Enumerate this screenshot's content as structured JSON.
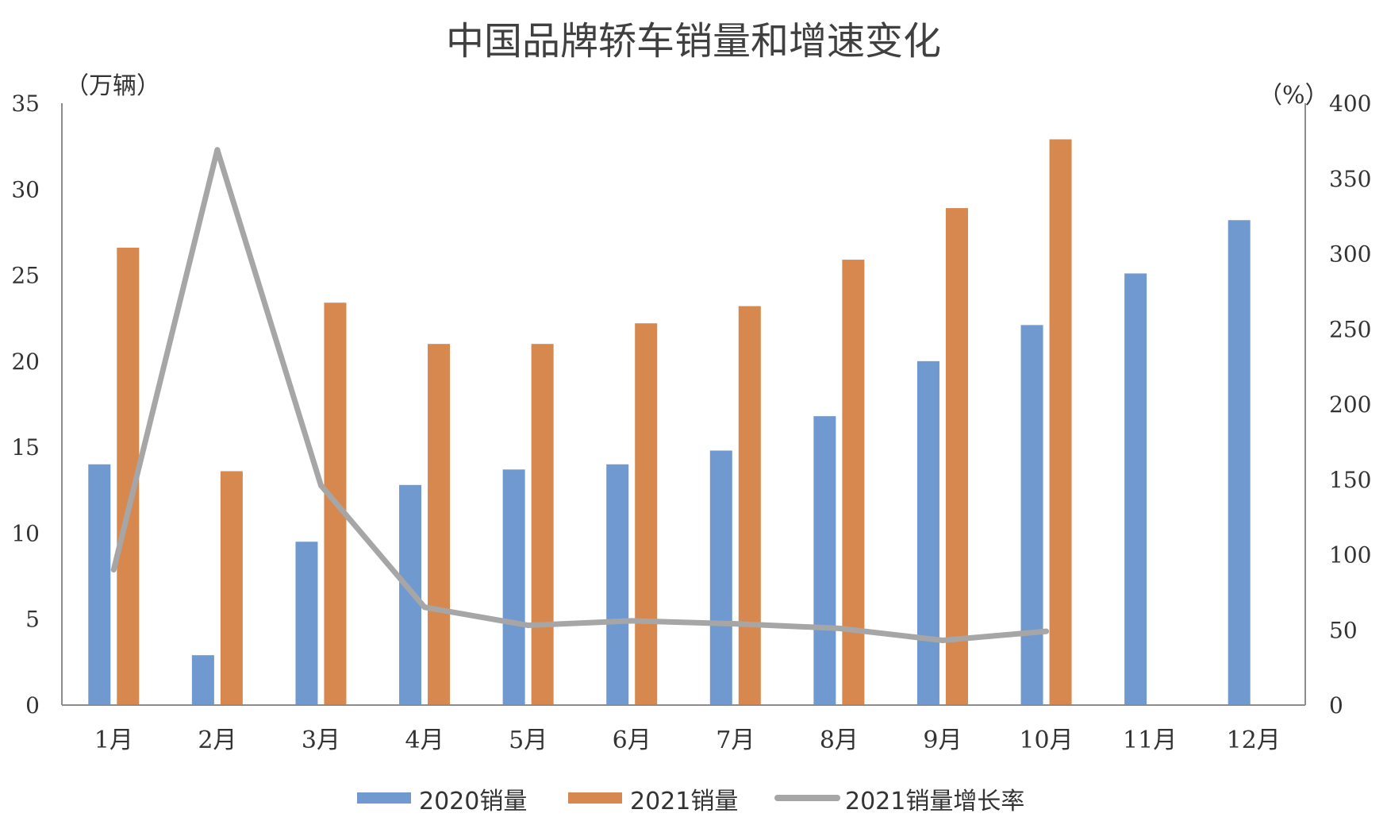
{
  "chart_data": {
    "type": "bar",
    "title": "中国品牌轿车销量和增速变化",
    "ylabel": "（万辆）",
    "y2label": "（%）",
    "categories": [
      "1月",
      "2月",
      "3月",
      "4月",
      "5月",
      "6月",
      "7月",
      "8月",
      "9月",
      "10月",
      "11月",
      "12月"
    ],
    "series": [
      {
        "name": "2020销量",
        "type": "bar",
        "axis": "left",
        "color": "#7099cf",
        "values": [
          14.0,
          2.9,
          9.5,
          12.8,
          13.7,
          14.0,
          14.8,
          16.8,
          20.0,
          22.1,
          25.1,
          28.2
        ]
      },
      {
        "name": "2021销量",
        "type": "bar",
        "axis": "left",
        "color": "#d6884e",
        "values": [
          26.6,
          13.6,
          23.4,
          21.0,
          21.0,
          22.2,
          23.2,
          25.9,
          28.9,
          32.9,
          null,
          null
        ]
      },
      {
        "name": "2021销量增长率",
        "type": "line",
        "axis": "right",
        "color": "#a6a6a6",
        "values": [
          90,
          369,
          146,
          65,
          53,
          56,
          54,
          51,
          43,
          49,
          null,
          null
        ]
      }
    ],
    "ylim": [
      0,
      35
    ],
    "yticks": [
      "0",
      "5",
      "10",
      "15",
      "20",
      "25",
      "30",
      "35"
    ],
    "y2lim": [
      0,
      400
    ],
    "y2ticks": [
      "0",
      "50",
      "100",
      "150",
      "200",
      "250",
      "300",
      "350",
      "400"
    ],
    "grid": false,
    "legend_position": "bottom"
  }
}
